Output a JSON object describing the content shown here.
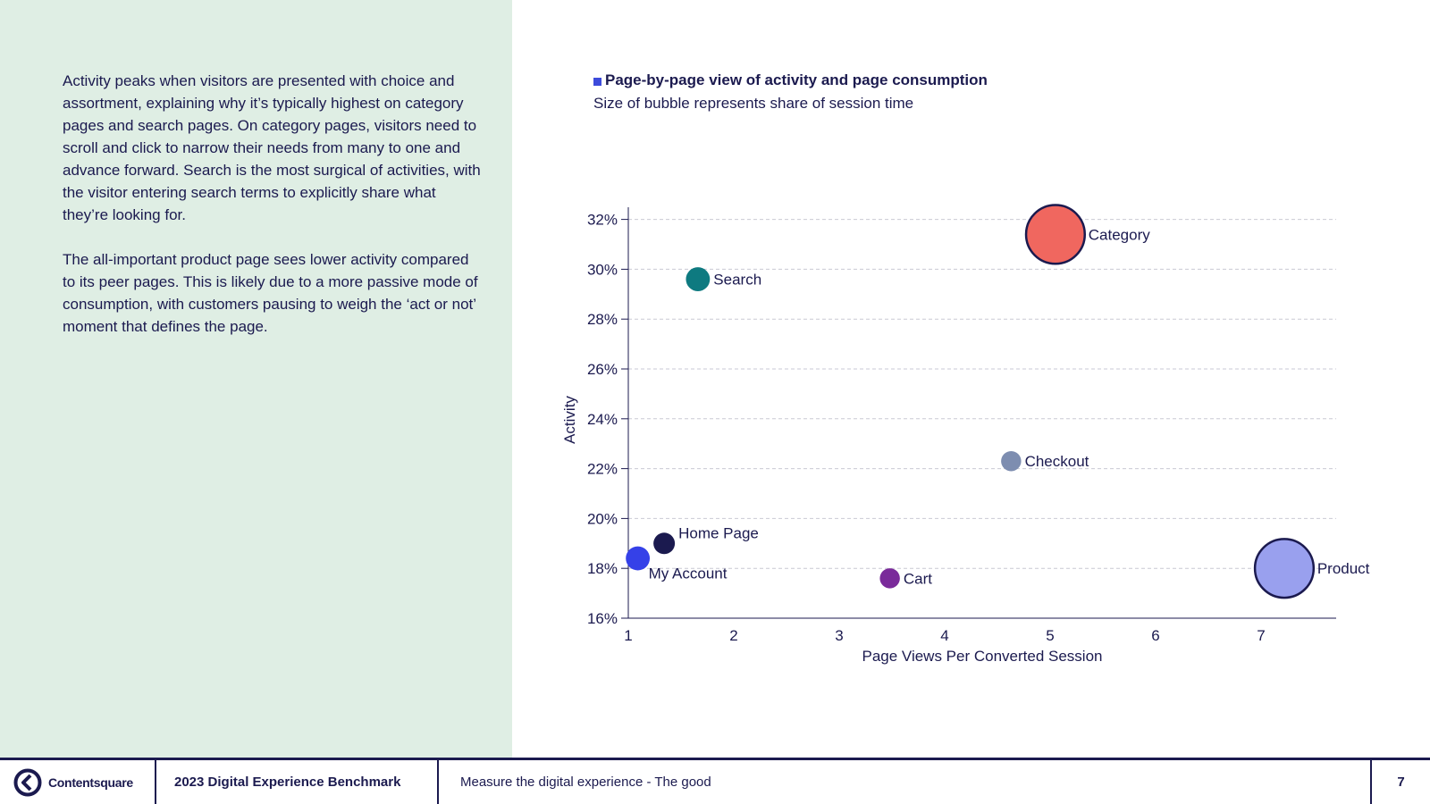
{
  "body": {
    "paragraphs": [
      "Activity peaks when visitors are presented with choice and assortment, explaining why it’s typically highest on category pages and search pages. On category pages, visitors need to scroll and click to narrow their needs from many to one and advance forward. Search is the most surgical of activities, with the visitor entering search terms to explicitly share what they’re looking for.",
      "The all-important product page sees lower activity compared to its peer pages. This is likely due to a more passive mode of consumption, with customers pausing to weigh the ‘act or not’ moment that defines the page."
    ]
  },
  "chart_data": {
    "type": "scatter",
    "subtype": "bubble",
    "title": "Page-by-page view of activity and page consumption",
    "subtitle": "Size of bubble represents share of session time",
    "xlabel": "Page Views Per Converted Session",
    "ylabel": "Activity",
    "xlim": [
      1,
      7.7
    ],
    "ylim": [
      16,
      32.4
    ],
    "xticks": [
      1,
      2,
      3,
      4,
      5,
      6,
      7
    ],
    "yticks": [
      16,
      18,
      20,
      22,
      24,
      26,
      28,
      30,
      32
    ],
    "ytick_labels": [
      "16%",
      "18%",
      "20%",
      "22%",
      "24%",
      "26%",
      "28%",
      "30%",
      "32%"
    ],
    "grid": "horizontal-dashed",
    "points": [
      {
        "name": "Category",
        "x": 5.05,
        "y": 31.4,
        "size": 30,
        "color": "#f0675f",
        "outline": true,
        "label_pos": "right"
      },
      {
        "name": "Search",
        "x": 1.66,
        "y": 29.6,
        "size": 5,
        "color": "#0e7a80",
        "outline": false,
        "label_pos": "right"
      },
      {
        "name": "Checkout",
        "x": 4.63,
        "y": 22.3,
        "size": 3.5,
        "color": "#7d8db0",
        "outline": false,
        "label_pos": "right"
      },
      {
        "name": "Home Page",
        "x": 1.34,
        "y": 19.0,
        "size": 4,
        "color": "#1b1a4f",
        "outline": false,
        "label_pos": "upper-right"
      },
      {
        "name": "My Account",
        "x": 1.09,
        "y": 18.4,
        "size": 5,
        "color": "#3541e8",
        "outline": false,
        "label_pos": "below-right"
      },
      {
        "name": "Cart",
        "x": 3.48,
        "y": 17.6,
        "size": 3.5,
        "color": "#7a2a9a",
        "outline": false,
        "label_pos": "right"
      },
      {
        "name": "Product",
        "x": 7.22,
        "y": 18.0,
        "size": 30,
        "color": "#99a0ee",
        "outline": true,
        "label_pos": "right"
      }
    ]
  },
  "footer": {
    "logo_text": "Contentsquare",
    "report": "2023 Digital Experience Benchmark",
    "section": "Measure the digital experience - The good",
    "page": "7"
  }
}
